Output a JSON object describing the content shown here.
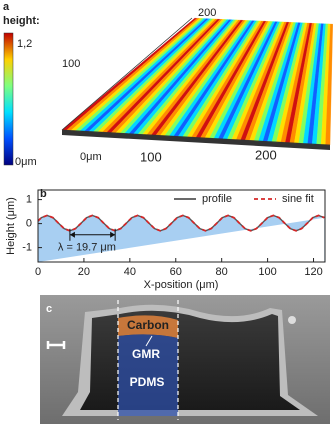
{
  "panel_a": {
    "label": "a",
    "colorbar_title": "height:",
    "colorbar_max": "1,2",
    "colorbar_min": "0μm",
    "y_ticks": [
      "200",
      "100"
    ],
    "x_ticks": [
      "0μm",
      "100",
      "200"
    ]
  },
  "chart_data": {
    "type": "line",
    "label": "b",
    "xlabel": "X-position (μm)",
    "ylabel": "Height (μm)",
    "annotation": "λ = 19.7 μm",
    "x": [
      0,
      1.5,
      4.0,
      6.5,
      8.9,
      11.4,
      13.9,
      16.3,
      18.8,
      21.2,
      23.7,
      26.2,
      28.6,
      31.1,
      33.6,
      36.0,
      38.5,
      40.9,
      43.4,
      45.9,
      48.3,
      50.8,
      53.3,
      55.7,
      58.2,
      60.6,
      63.1,
      65.6,
      68.0,
      70.5,
      73.0,
      75.4,
      77.9,
      80.3,
      82.8,
      85.3,
      87.7,
      90.2,
      92.7,
      95.1,
      97.6,
      100.0,
      102.5,
      105.0,
      107.4,
      109.9,
      112.4,
      114.8,
      117.3,
      119.7,
      122.2,
      124.7
    ],
    "series": [
      {
        "name": "profile",
        "color": "#555555",
        "values": [
          0.11,
          0.25,
          0.34,
          0.25,
          0.02,
          -0.21,
          -0.3,
          -0.21,
          0.02,
          0.25,
          0.34,
          0.25,
          0.02,
          -0.21,
          -0.3,
          -0.21,
          0.02,
          0.25,
          0.34,
          0.25,
          0.02,
          -0.21,
          -0.3,
          -0.21,
          0.02,
          0.25,
          0.34,
          0.25,
          0.02,
          -0.21,
          -0.3,
          -0.21,
          0.02,
          0.25,
          0.34,
          0.25,
          0.02,
          -0.21,
          -0.3,
          -0.21,
          0.02,
          0.25,
          0.34,
          0.25,
          0.02,
          -0.21,
          -0.3,
          -0.21,
          0.02,
          0.25,
          0.34,
          0.25
        ]
      },
      {
        "name": "sine fit",
        "color": "#d62728",
        "dashed": true,
        "values": [
          0.11,
          0.25,
          0.34,
          0.25,
          0.02,
          -0.21,
          -0.3,
          -0.21,
          0.02,
          0.25,
          0.34,
          0.25,
          0.02,
          -0.21,
          -0.3,
          -0.21,
          0.02,
          0.25,
          0.34,
          0.25,
          0.02,
          -0.21,
          -0.3,
          -0.21,
          0.02,
          0.25,
          0.34,
          0.25,
          0.02,
          -0.21,
          -0.3,
          -0.21,
          0.02,
          0.25,
          0.34,
          0.25,
          0.02,
          -0.21,
          -0.3,
          -0.21,
          0.02,
          0.25,
          0.34,
          0.25,
          0.02,
          -0.21,
          -0.3,
          -0.21,
          0.02,
          0.25,
          0.34,
          0.25
        ]
      }
    ],
    "area_color": "#a8cff2",
    "xlim": [
      0,
      125
    ],
    "ylim": [
      -1.6,
      1.4
    ],
    "xticks": [
      0,
      20,
      40,
      60,
      80,
      100,
      120
    ],
    "yticks": [
      -1,
      0,
      1
    ],
    "legend": "upper right"
  },
  "panel_c": {
    "label": "c",
    "layers": [
      "Carbon",
      "GMR",
      "PDMS"
    ]
  }
}
